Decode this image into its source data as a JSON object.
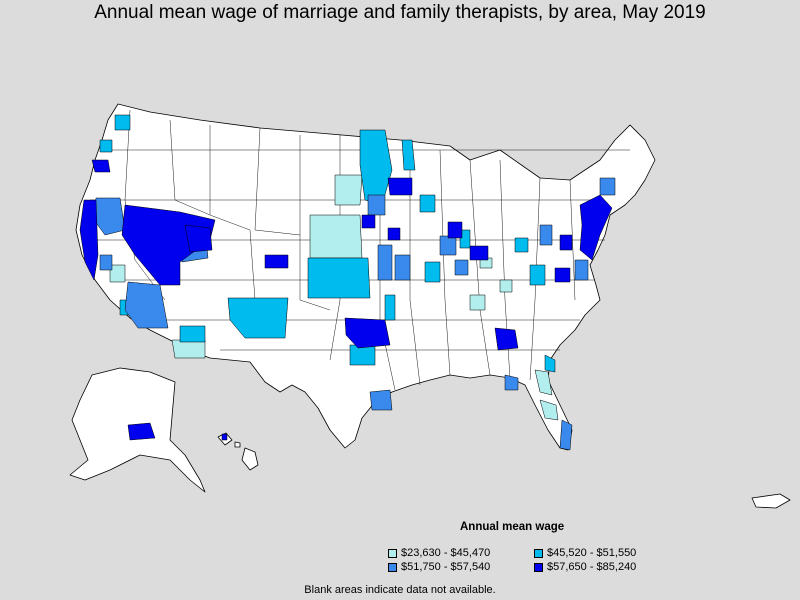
{
  "title": "Annual mean wage of marriage and family therapists, by area, May 2019",
  "legend": {
    "title": "Annual mean wage",
    "items": [
      {
        "label": "$23,630 - $45,470",
        "color": "#b2eeee"
      },
      {
        "label": "$45,520 - $51,550",
        "color": "#00bbee"
      },
      {
        "label": "$51,750 - $57,540",
        "color": "#3a8aee"
      },
      {
        "label": "$57,650 - $85,240",
        "color": "#0000ee"
      }
    ]
  },
  "note": "Blank areas indicate data not available.",
  "colors": {
    "background": "#dcdcdc",
    "land": "#ffffff",
    "border": "#000000"
  }
}
